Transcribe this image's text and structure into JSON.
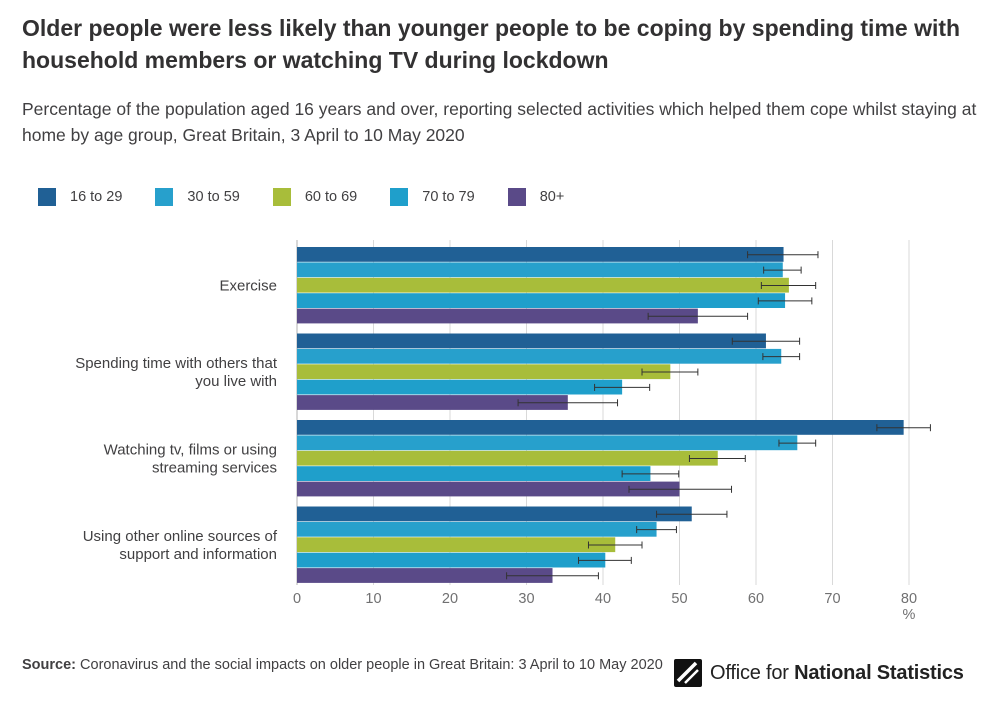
{
  "header": {
    "title": "Older people were less likely than younger people to be coping by spending time with household members or watching TV during lockdown",
    "subtitle": "Percentage of the population aged 16 years and over, reporting selected activities which helped them cope whilst staying at home by age group, Great Britain, 3 April to 10 May 2020"
  },
  "chart_data": {
    "type": "bar",
    "orientation": "horizontal",
    "categories": [
      [
        "Exercise"
      ],
      [
        "Spending time with others that",
        "you live with"
      ],
      [
        "Watching tv, films or using",
        "streaming services"
      ],
      [
        "Using other online sources of",
        "support and information"
      ]
    ],
    "series": [
      {
        "name": "16 to 29",
        "color": "#206095",
        "values": [
          63.6,
          61.3,
          79.3,
          51.6
        ],
        "ci": [
          [
            58.9,
            68.1
          ],
          [
            56.9,
            65.7
          ],
          [
            75.8,
            82.8
          ],
          [
            47.0,
            56.2
          ]
        ]
      },
      {
        "name": "30 to 59",
        "color": "#27A0CC",
        "values": [
          63.5,
          63.3,
          65.4,
          47.0
        ],
        "ci": [
          [
            61.0,
            65.9
          ],
          [
            60.9,
            65.7
          ],
          [
            63.0,
            67.8
          ],
          [
            44.4,
            49.6
          ]
        ]
      },
      {
        "name": "60 to 69",
        "color": "#A8BD3A",
        "values": [
          64.3,
          48.8,
          55.0,
          41.6
        ],
        "ci": [
          [
            60.7,
            67.8
          ],
          [
            45.1,
            52.4
          ],
          [
            51.3,
            58.6
          ],
          [
            38.1,
            45.1
          ]
        ]
      },
      {
        "name": "70 to 79",
        "color": "#1F9FCB",
        "values": [
          63.8,
          42.5,
          46.2,
          40.3
        ],
        "ci": [
          [
            60.3,
            67.3
          ],
          [
            38.9,
            46.1
          ],
          [
            42.5,
            49.9
          ],
          [
            36.8,
            43.7
          ]
        ]
      },
      {
        "name": "80+",
        "color": "#5A4A88",
        "values": [
          52.4,
          35.4,
          50.0,
          33.4
        ],
        "ci": [
          [
            45.9,
            58.9
          ],
          [
            28.9,
            41.9
          ],
          [
            43.4,
            56.8
          ],
          [
            27.4,
            39.4
          ]
        ]
      }
    ],
    "xlim": [
      0,
      80
    ],
    "xticks": [
      "0",
      "10",
      "20",
      "30",
      "40",
      "50",
      "60",
      "70",
      "80"
    ],
    "xunit": "%",
    "grid": true,
    "legend_position": "top-left"
  },
  "source": {
    "label": "Source:",
    "text": "Coronavirus and the social impacts on older people in Great Britain: 3 April to 10 May 2020"
  },
  "logo": {
    "text_regular": "Office for ",
    "text_bold": "National Statistics"
  }
}
